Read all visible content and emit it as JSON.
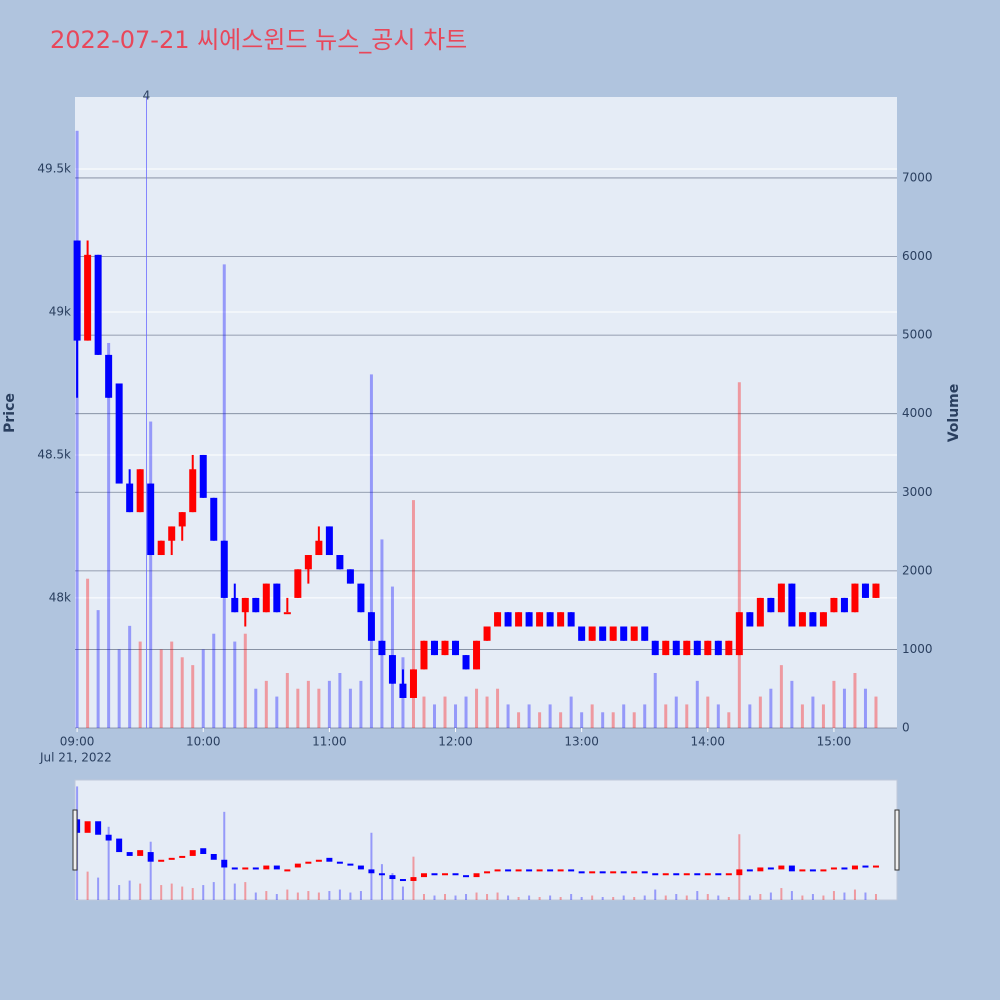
{
  "chart_data": {
    "type": "candlestick",
    "title": "2022-07-21 씨에스윈드 뉴스_공시 차트",
    "y_title": "Price",
    "y2_title": "Volume",
    "x_date_label": "Jul 21, 2022",
    "increasing_color": "#ff0000",
    "decreasing_color": "#0000ff",
    "x": [
      "2022-07-21 09:00",
      "2022-07-21 09:05",
      "2022-07-21 09:10",
      "2022-07-21 09:15",
      "2022-07-21 09:20",
      "2022-07-21 09:25",
      "2022-07-21 09:30",
      "2022-07-21 09:35",
      "2022-07-21 09:40",
      "2022-07-21 09:45",
      "2022-07-21 09:50",
      "2022-07-21 09:55",
      "2022-07-21 10:00",
      "2022-07-21 10:05",
      "2022-07-21 10:10",
      "2022-07-21 10:15",
      "2022-07-21 10:20",
      "2022-07-21 10:25",
      "2022-07-21 10:30",
      "2022-07-21 10:35",
      "2022-07-21 10:40",
      "2022-07-21 10:45",
      "2022-07-21 10:50",
      "2022-07-21 10:55",
      "2022-07-21 11:00",
      "2022-07-21 11:05",
      "2022-07-21 11:10",
      "2022-07-21 11:15",
      "2022-07-21 11:20",
      "2022-07-21 11:25",
      "2022-07-21 11:30",
      "2022-07-21 11:35",
      "2022-07-21 11:40",
      "2022-07-21 11:45",
      "2022-07-21 11:50",
      "2022-07-21 11:55",
      "2022-07-21 12:00",
      "2022-07-21 12:05",
      "2022-07-21 12:10",
      "2022-07-21 12:15",
      "2022-07-21 12:20",
      "2022-07-21 12:25",
      "2022-07-21 12:30",
      "2022-07-21 12:35",
      "2022-07-21 12:40",
      "2022-07-21 12:45",
      "2022-07-21 12:50",
      "2022-07-21 12:55",
      "2022-07-21 13:00",
      "2022-07-21 13:05",
      "2022-07-21 13:10",
      "2022-07-21 13:15",
      "2022-07-21 13:20",
      "2022-07-21 13:25",
      "2022-07-21 13:30",
      "2022-07-21 13:35",
      "2022-07-21 13:40",
      "2022-07-21 13:45",
      "2022-07-21 13:50",
      "2022-07-21 13:55",
      "2022-07-21 14:00",
      "2022-07-21 14:05",
      "2022-07-21 14:10",
      "2022-07-21 14:15",
      "2022-07-21 14:20",
      "2022-07-21 14:25",
      "2022-07-21 14:30",
      "2022-07-21 14:35",
      "2022-07-21 14:40",
      "2022-07-21 14:45",
      "2022-07-21 14:50",
      "2022-07-21 14:55",
      "2022-07-21 15:00",
      "2022-07-21 15:05",
      "2022-07-21 15:10",
      "2022-07-21 15:15",
      "2022-07-21 15:20"
    ],
    "open": [
      49250,
      48900,
      49200,
      48850,
      48750,
      48400,
      48300,
      48400,
      48150,
      48200,
      48250,
      48300,
      48500,
      48350,
      48200,
      48000,
      47950,
      48000,
      47950,
      48050,
      47950,
      48000,
      48100,
      48150,
      48250,
      48150,
      48100,
      48050,
      47950,
      47850,
      47800,
      47700,
      47650,
      47750,
      47850,
      47800,
      47850,
      47800,
      47750,
      47850,
      47900,
      47950,
      47900,
      47950,
      47900,
      47950,
      47900,
      47950,
      47900,
      47850,
      47900,
      47850,
      47900,
      47850,
      47900,
      47850,
      47800,
      47850,
      47800,
      47850,
      47800,
      47850,
      47800,
      47800,
      47950,
      47900,
      48000,
      47950,
      48050,
      47900,
      47950,
      47900,
      47950,
      48000,
      47950,
      48050,
      48000
    ],
    "high": [
      49250,
      49250,
      49200,
      48850,
      48750,
      48450,
      48450,
      48400,
      48200,
      48250,
      48300,
      48500,
      48500,
      48350,
      48200,
      48050,
      48000,
      48000,
      48050,
      48050,
      48000,
      48100,
      48150,
      48250,
      48250,
      48150,
      48100,
      48050,
      47950,
      47850,
      47800,
      47750,
      47750,
      47850,
      47850,
      47850,
      47850,
      47800,
      47850,
      47900,
      47950,
      47950,
      47950,
      47950,
      47950,
      47950,
      47950,
      47950,
      47900,
      47900,
      47900,
      47900,
      47900,
      47900,
      47900,
      47850,
      47850,
      47850,
      47850,
      47850,
      47850,
      47850,
      47850,
      47950,
      47950,
      48000,
      48000,
      48050,
      48050,
      47950,
      47950,
      47950,
      48000,
      48000,
      48050,
      48050,
      48050
    ],
    "low": [
      48700,
      48900,
      48850,
      48700,
      48400,
      48300,
      48300,
      48150,
      48150,
      48150,
      48200,
      48300,
      48350,
      48200,
      48000,
      47950,
      47900,
      47950,
      47950,
      47950,
      47950,
      48000,
      48050,
      48150,
      48150,
      48100,
      48050,
      47950,
      47850,
      47800,
      47700,
      47650,
      47650,
      47750,
      47800,
      47800,
      47800,
      47750,
      47750,
      47850,
      47900,
      47900,
      47900,
      47900,
      47900,
      47900,
      47900,
      47900,
      47850,
      47850,
      47850,
      47850,
      47850,
      47850,
      47850,
      47800,
      47800,
      47800,
      47800,
      47800,
      47800,
      47800,
      47800,
      47800,
      47900,
      47900,
      47950,
      47950,
      47900,
      47900,
      47900,
      47900,
      47950,
      47950,
      47950,
      48000,
      48000
    ],
    "close": [
      48900,
      49200,
      48850,
      48700,
      48400,
      48300,
      48450,
      48150,
      48200,
      48250,
      48300,
      48450,
      48350,
      48200,
      48000,
      47950,
      48000,
      47950,
      48050,
      47950,
      47950,
      48100,
      48150,
      48200,
      48150,
      48100,
      48050,
      47950,
      47850,
      47800,
      47700,
      47650,
      47750,
      47850,
      47800,
      47850,
      47800,
      47750,
      47850,
      47900,
      47950,
      47900,
      47950,
      47900,
      47950,
      47900,
      47950,
      47900,
      47850,
      47900,
      47850,
      47900,
      47850,
      47900,
      47850,
      47800,
      47850,
      47800,
      47850,
      47800,
      47850,
      47800,
      47850,
      47950,
      47900,
      48000,
      47950,
      48050,
      47900,
      47950,
      47900,
      47950,
      48000,
      47950,
      48050,
      48000,
      48050
    ],
    "volume": [
      7600,
      1900,
      1500,
      4900,
      1000,
      1300,
      1100,
      3900,
      1000,
      1100,
      900,
      800,
      1000,
      1200,
      5900,
      1100,
      1200,
      500,
      600,
      400,
      700,
      500,
      600,
      500,
      600,
      700,
      500,
      600,
      4500,
      2400,
      1800,
      900,
      2900,
      400,
      300,
      400,
      300,
      400,
      500,
      400,
      500,
      300,
      200,
      300,
      200,
      300,
      200,
      400,
      200,
      300,
      200,
      200,
      300,
      200,
      300,
      700,
      300,
      400,
      300,
      600,
      400,
      300,
      200,
      4400,
      300,
      400,
      500,
      800,
      600,
      300,
      400,
      300,
      600,
      500,
      700,
      500,
      400
    ],
    "xlim": [
      "2022-07-21 08:59",
      "2022-07-21 15:30"
    ],
    "xticks": [
      {
        "value": "2022-07-21 09:00",
        "label": "09:00"
      },
      {
        "value": "2022-07-21 10:00",
        "label": "10:00"
      },
      {
        "value": "2022-07-21 11:00",
        "label": "11:00"
      },
      {
        "value": "2022-07-21 12:00",
        "label": "12:00"
      },
      {
        "value": "2022-07-21 13:00",
        "label": "13:00"
      },
      {
        "value": "2022-07-21 14:00",
        "label": "14:00"
      },
      {
        "value": "2022-07-21 15:00",
        "label": "15:00"
      }
    ],
    "ylim": [
      47545,
      49752
    ],
    "yticks": [
      {
        "value": 48000,
        "label": "48k"
      },
      {
        "value": 48500,
        "label": "48.5k"
      },
      {
        "value": 49000,
        "label": "49k"
      },
      {
        "value": 49500,
        "label": "49.5k"
      }
    ],
    "y2lim": [
      0,
      8030
    ],
    "y2ticks": [
      0,
      1000,
      2000,
      3000,
      4000,
      5000,
      6000,
      7000
    ],
    "annotations": [
      {
        "x": "2022-07-21 09:33",
        "text": "4"
      }
    ],
    "rangeslider": true
  }
}
